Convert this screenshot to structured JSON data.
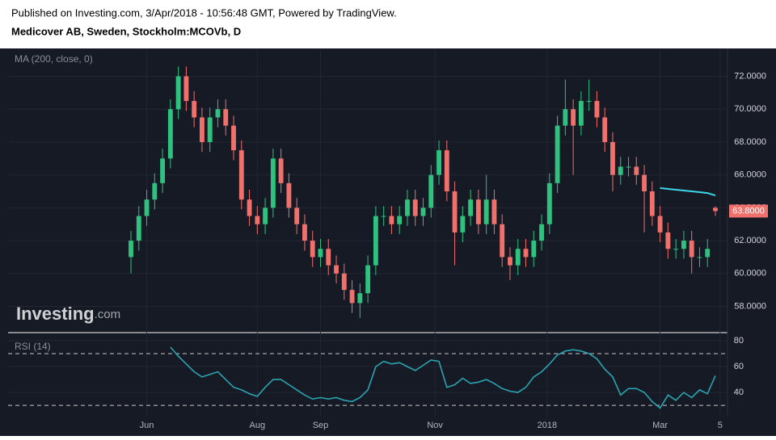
{
  "header": {
    "published": "Published on Investing.com, 3/Apr/2018 - 10:56:48 GMT, Powered by TradingView.",
    "symbol": "Medicover AB, Sweden, Stockholm:MCOVb, D"
  },
  "chart_data": [
    {
      "type": "candlestick",
      "categories": [
        null,
        null,
        null,
        null,
        null,
        null,
        null,
        null,
        null,
        null,
        null,
        null,
        null,
        null,
        null,
        null,
        null,
        null,
        null,
        null,
        null,
        null,
        null,
        null,
        null,
        null,
        null,
        null,
        null,
        null,
        null,
        null,
        null,
        null,
        null,
        null,
        null,
        null,
        null,
        null,
        null,
        null,
        null,
        null,
        null,
        null,
        null,
        null,
        null,
        null,
        null,
        null,
        null,
        null,
        null,
        null,
        null,
        null,
        null,
        null,
        null,
        null,
        null,
        null,
        null,
        null,
        null,
        null,
        null,
        null,
        null,
        null,
        null,
        null,
        null
      ],
      "open": [
        61,
        62,
        63.5,
        64.5,
        65.5,
        67,
        70,
        72,
        70.5,
        69.5,
        68,
        69.5,
        70,
        69,
        67.5,
        64.5,
        63.5,
        63,
        64,
        67,
        65.5,
        64,
        63,
        62,
        61,
        61.5,
        60.5,
        60,
        59,
        58.2,
        58.8,
        60.5,
        63.5,
        63.5,
        63,
        63.5,
        64.5,
        63.5,
        64,
        66,
        67.5,
        65,
        62.5,
        63.5,
        64.5,
        63,
        64.5,
        63,
        61,
        60.5,
        61.5,
        61,
        62,
        63,
        65.5,
        69,
        70,
        69,
        70.5,
        70.5,
        69.5,
        68,
        66,
        66.5,
        66.5,
        66,
        65,
        63.5,
        62.5,
        61.5,
        61.5,
        62,
        61,
        61,
        64
      ],
      "high": [
        62.6,
        64.1,
        65.1,
        66.1,
        67.6,
        70.6,
        72.6,
        72.6,
        71.1,
        70.1,
        70.1,
        70.6,
        70.6,
        69.6,
        68.1,
        65.1,
        64.1,
        64.6,
        67.6,
        67.6,
        66.1,
        64.6,
        63.6,
        62.6,
        62.1,
        62.1,
        61.1,
        60.6,
        59.6,
        59.4,
        61.1,
        64.1,
        64.1,
        64.1,
        64.1,
        65.1,
        65.1,
        64.6,
        66.6,
        68.1,
        68.1,
        65.6,
        64.1,
        65.1,
        65.1,
        66.0,
        65.1,
        63.6,
        61.6,
        62.1,
        62.1,
        62.6,
        63.6,
        66.1,
        69.6,
        71.8,
        70.6,
        71.1,
        71.8,
        71.1,
        70.1,
        68.6,
        67.1,
        67.1,
        67.1,
        66.6,
        65.6,
        64.1,
        63.1,
        62.1,
        62.6,
        62.6,
        61.6,
        62.1,
        64.1
      ],
      "low": [
        60.0,
        61.4,
        62.9,
        63.9,
        64.9,
        66.4,
        69.4,
        69.9,
        68.9,
        67.4,
        67.4,
        68.9,
        68.4,
        66.9,
        63.9,
        62.9,
        62.4,
        62.4,
        63.4,
        64.9,
        63.4,
        62.4,
        61.4,
        60.4,
        60.4,
        59.9,
        59.4,
        58.4,
        57.6,
        57.3,
        58.2,
        59.9,
        62.9,
        62.4,
        62.4,
        62.9,
        62.9,
        62.9,
        63.4,
        65.4,
        64.4,
        60.5,
        61.9,
        62.9,
        62.4,
        62.4,
        62.4,
        60.4,
        59.6,
        59.9,
        60.4,
        60.4,
        61.4,
        62.4,
        64.9,
        68.4,
        66.0,
        68.4,
        69.9,
        68.9,
        67.4,
        65.0,
        65.4,
        65.9,
        65.4,
        62.5,
        62.9,
        61.9,
        60.9,
        60.9,
        60.9,
        60.0,
        60.4,
        60.4,
        63.5
      ],
      "close": [
        62,
        63.5,
        64.5,
        65.5,
        67,
        70,
        72,
        70.5,
        69.5,
        68,
        69.5,
        70,
        69,
        67.5,
        64.5,
        63.5,
        63,
        64,
        67,
        65.5,
        64,
        63,
        62,
        61,
        61.5,
        60.5,
        60,
        59,
        58.2,
        58.8,
        60.5,
        63.5,
        63.5,
        63,
        63.5,
        64.5,
        63.5,
        64,
        66,
        67.5,
        65,
        62.5,
        63.5,
        64.5,
        63,
        64.5,
        63,
        61,
        60.5,
        61.5,
        61,
        62,
        63,
        65.5,
        69,
        70,
        69,
        70.5,
        70.5,
        69.5,
        68,
        66,
        66.5,
        66.5,
        66,
        65,
        63.5,
        62.5,
        61.5,
        61.5,
        62,
        61,
        61,
        61.5,
        63.8
      ],
      "up_color": "#2ec27e",
      "down_color": "#f0706c",
      "series": [
        {
          "name": "MA (200, close, 0)",
          "color": "#3dd6e8",
          "values": [
            null,
            null,
            null,
            null,
            null,
            null,
            null,
            null,
            null,
            null,
            null,
            null,
            null,
            null,
            null,
            null,
            null,
            null,
            null,
            null,
            null,
            null,
            null,
            null,
            null,
            null,
            null,
            null,
            null,
            null,
            null,
            null,
            null,
            null,
            null,
            null,
            null,
            null,
            null,
            null,
            null,
            null,
            null,
            null,
            null,
            null,
            null,
            null,
            null,
            null,
            null,
            null,
            null,
            null,
            null,
            null,
            null,
            null,
            null,
            null,
            null,
            null,
            null,
            null,
            null,
            null,
            null,
            65.2,
            65.15,
            65.1,
            65.05,
            65.0,
            64.95,
            64.9,
            64.75
          ]
        }
      ],
      "last_label": "63.8000",
      "ylim": [
        56.5,
        73.6
      ],
      "yticks": [
        {
          "value": 58,
          "label": "58.0000"
        },
        {
          "value": 60,
          "label": "60.0000"
        },
        {
          "value": 62,
          "label": "62.0000"
        },
        {
          "value": 64,
          "label": "64.0000"
        },
        {
          "value": 66,
          "label": "66.0000"
        },
        {
          "value": 68,
          "label": "68.0000"
        },
        {
          "value": 70,
          "label": "70.0000"
        },
        {
          "value": 72,
          "label": "72.0000"
        }
      ],
      "grid": true,
      "watermark": [
        "Investing",
        ".com"
      ]
    },
    {
      "type": "line",
      "series": [
        {
          "name": "RSI (14)",
          "color": "#2aa3b0",
          "values": [
            null,
            null,
            null,
            null,
            null,
            75,
            68,
            62,
            56,
            52,
            54,
            56,
            50,
            44,
            42,
            39,
            37,
            44,
            50,
            50,
            46,
            42,
            38,
            35,
            36,
            35,
            36,
            34,
            33,
            36,
            42,
            60,
            64,
            62,
            63,
            60,
            57,
            61,
            65,
            64,
            44,
            46,
            51,
            47,
            48,
            50,
            47,
            43,
            41,
            40,
            44,
            52,
            56,
            62,
            69,
            72,
            73,
            72,
            70,
            66,
            58,
            52,
            38,
            43,
            43,
            40,
            33,
            28,
            38,
            34,
            40,
            36,
            42,
            39,
            53
          ]
        }
      ],
      "ylim": [
        22,
        85.6
      ],
      "yticks": [
        40,
        60,
        80
      ],
      "levels": [
        70,
        30
      ],
      "xticks": [
        {
          "value": 2,
          "label": "Jun"
        },
        {
          "value": 16,
          "label": "Aug"
        },
        {
          "value": 24,
          "label": "Sep"
        },
        {
          "value": 38.5,
          "label": "Nov"
        },
        {
          "value": 52.7,
          "label": "2018"
        },
        {
          "value": 67,
          "label": "Mar"
        },
        {
          "value": 74.6,
          "label": "5"
        }
      ]
    }
  ]
}
